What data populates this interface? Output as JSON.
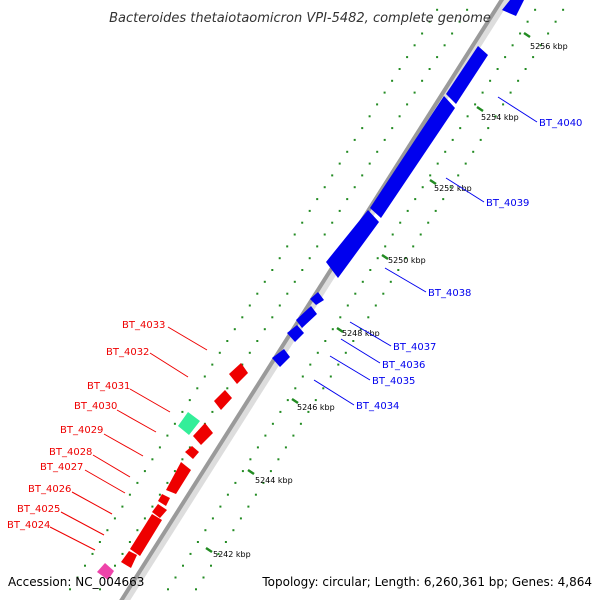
{
  "title": "Bacteroides thetaiotaomicron VPI-5482, complete genome",
  "accession": "Accession: NC_004663",
  "summary": "Topology: circular; Length: 6,260,361 bp; Genes: 4,864",
  "colors": {
    "backbone": "#9a9a9a",
    "forward_gene": "#0000ee",
    "reverse_gene": "#ee0000",
    "rna_gene": "#33ee99",
    "other_gene": "#ee44aa",
    "dots": "#228b22"
  },
  "ticks": [
    "5242 kbp",
    "5244 kbp",
    "5246 kbp",
    "5248 kbp",
    "5250 kbp",
    "5252 kbp",
    "5254 kbp",
    "5256 kbp"
  ],
  "genes_forward": [
    "BT_4034",
    "BT_4035",
    "BT_4036",
    "BT_4037",
    "BT_4038",
    "BT_4039",
    "BT_4040"
  ],
  "genes_reverse": [
    "BT_4024",
    "BT_4025",
    "BT_4026",
    "BT_4027",
    "BT_4028",
    "BT_4029",
    "BT_4030",
    "BT_4031",
    "BT_4032",
    "BT_4033"
  ]
}
